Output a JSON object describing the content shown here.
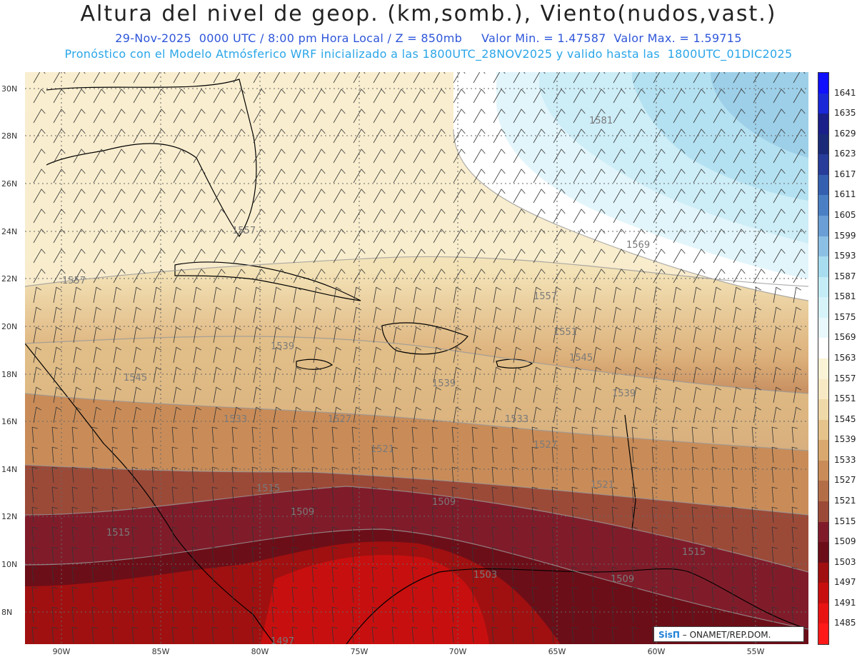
{
  "header": {
    "title": "Altura del nivel de geop. (km,somb.), Viento(nudos,vast.)",
    "subtitle1": "29-Nov-2025  0000 UTC / 8:00 pm Hora Local / Z = 850mb     Valor Min. = 1.47587  Valor Max. = 1.59715",
    "subtitle2": "Pronóstico con el Modelo Atmósferico WRF inicializado a las 1800UTC_28NOV2025 y valido hasta las  1800UTC_01DIC2025"
  },
  "axes": {
    "lat_labels": [
      "30N",
      "28N",
      "26N",
      "24N",
      "22N",
      "20N",
      "18N",
      "16N",
      "14N",
      "12N",
      "10N",
      "8N"
    ],
    "lon_labels": [
      "90W",
      "85W",
      "80W",
      "75W",
      "70W",
      "65W",
      "60W",
      "55W"
    ]
  },
  "colorbar": {
    "levels": [
      "1641",
      "1635",
      "1629",
      "1623",
      "1617",
      "1611",
      "1605",
      "1599",
      "1593",
      "1587",
      "1581",
      "1575",
      "1569",
      "1563",
      "1557",
      "1551",
      "1545",
      "1539",
      "1533",
      "1527",
      "1521",
      "1515",
      "1509",
      "1503",
      "1497",
      "1491",
      "1485"
    ],
    "colors": [
      "#1010ff",
      "#1a28d8",
      "#1a1f8a",
      "#1a2a78",
      "#283c9a",
      "#3560b0",
      "#4a7fc4",
      "#6a9ed4",
      "#8cbfe4",
      "#a8dcef",
      "#c4ecf6",
      "#d6f3fa",
      "#e8f8fc",
      "#ffffff",
      "#fbf3d6",
      "#f7e9c4",
      "#efd9a8",
      "#e5c38a",
      "#d8a86e",
      "#c98c58",
      "#b36e48",
      "#9c4a38",
      "#801c2a",
      "#6c0e18",
      "#a01010",
      "#c80f0f",
      "#e81414",
      "#ff1a1a"
    ],
    "colors_note": ""
  },
  "contours": {
    "labels": [
      {
        "text": "1581"
      },
      {
        "text": "1569"
      },
      {
        "text": "1557"
      },
      {
        "text": "1557"
      },
      {
        "text": "1557"
      },
      {
        "text": "1551"
      },
      {
        "text": "1545"
      },
      {
        "text": "1545"
      },
      {
        "text": "1539"
      },
      {
        "text": "1539"
      },
      {
        "text": "1539"
      },
      {
        "text": "1533"
      },
      {
        "text": "1527"
      },
      {
        "text": "1533"
      },
      {
        "text": "1527"
      },
      {
        "text": "1521"
      },
      {
        "text": "1521"
      },
      {
        "text": "1515"
      },
      {
        "text": "1515"
      },
      {
        "text": "1515"
      },
      {
        "text": "1509"
      },
      {
        "text": "1509"
      },
      {
        "text": "1509"
      },
      {
        "text": "1503"
      },
      {
        "text": "1497"
      }
    ]
  },
  "credit": {
    "logo": "SisΠ",
    "text": " – ONAMET/REP.DOM."
  }
}
